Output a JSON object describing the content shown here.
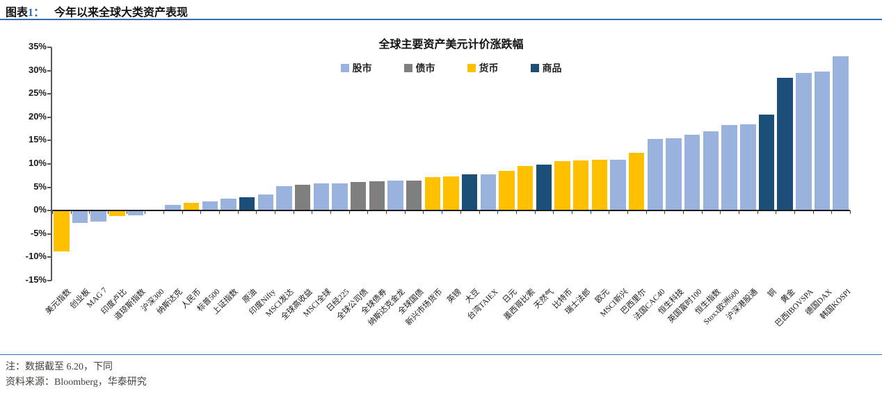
{
  "header": {
    "figure_label_prefix": "图表",
    "figure_label_num": "1：",
    "figure_title": "今年以来全球大类资产表现"
  },
  "chart_data": {
    "type": "bar",
    "title": "全球主要资产美元计价涨跌幅",
    "ylim": [
      -15,
      35
    ],
    "yticks": [
      35,
      30,
      25,
      20,
      15,
      10,
      5,
      0,
      -5,
      -10,
      -15
    ],
    "ytick_suffix": "%",
    "grid": false,
    "legend_position": "top-center",
    "legend": [
      {
        "name": "股市",
        "color": "#9AB2DE"
      },
      {
        "name": "债市",
        "color": "#7F7F7F"
      },
      {
        "name": "货币",
        "color": "#FFC000"
      },
      {
        "name": "商品",
        "color": "#1B4E79"
      }
    ],
    "colors": {
      "股市": "#9AB2DE",
      "债市": "#7F7F7F",
      "货币": "#FFC000",
      "商品": "#1B4E79"
    },
    "categories": [
      "美元指数",
      "创业板",
      "MAG 7",
      "印度卢比",
      "道琼斯指数",
      "沪深300",
      "纳斯达克",
      "人民币",
      "标普500",
      "上证指数",
      "原油",
      "印度Nifty",
      "MSCI发达",
      "全球高收益",
      "MSCI全球",
      "日经225",
      "全球公司债",
      "全球债券",
      "纳斯达克金龙",
      "全球国债",
      "新兴市场货币",
      "英镑",
      "大豆",
      "台湾TAIEX",
      "日元",
      "墨西哥比索",
      "天然气",
      "比特币",
      "瑞士法郎",
      "欧元",
      "MSCI新兴",
      "巴西里尔",
      "法国CAC40",
      "恒生科技",
      "英国富时100",
      "恒生指数",
      "Stoxx欧洲600",
      "沪深港股通",
      "铜",
      "黄金",
      "巴西IBOVSPA",
      "德国DAX",
      "韩国KOSPI"
    ],
    "groups": [
      "货币",
      "股市",
      "股市",
      "货币",
      "股市",
      "股市",
      "股市",
      "货币",
      "股市",
      "股市",
      "商品",
      "股市",
      "股市",
      "债市",
      "股市",
      "股市",
      "债市",
      "债市",
      "股市",
      "债市",
      "货币",
      "货币",
      "商品",
      "股市",
      "货币",
      "货币",
      "商品",
      "货币",
      "货币",
      "货币",
      "股市",
      "货币",
      "股市",
      "股市",
      "股市",
      "股市",
      "股市",
      "股市",
      "商品",
      "商品",
      "股市",
      "股市",
      "股市"
    ],
    "values": [
      -8.8,
      -2.7,
      -2.4,
      -1.2,
      -1.0,
      0.0,
      1.2,
      1.6,
      1.9,
      2.6,
      2.9,
      3.5,
      5.2,
      5.5,
      5.8,
      5.9,
      6.1,
      6.3,
      6.4,
      6.5,
      7.2,
      7.3,
      7.7,
      7.8,
      8.5,
      9.6,
      9.8,
      10.6,
      10.8,
      10.9,
      10.9,
      12.4,
      15.3,
      15.5,
      16.3,
      17.0,
      18.4,
      18.5,
      20.6,
      28.4,
      29.5,
      29.8,
      33.0
    ]
  },
  "footer": {
    "note": "注：数据截至 6.20，下同",
    "source": "资料来源：Bloomberg，华泰研究"
  }
}
